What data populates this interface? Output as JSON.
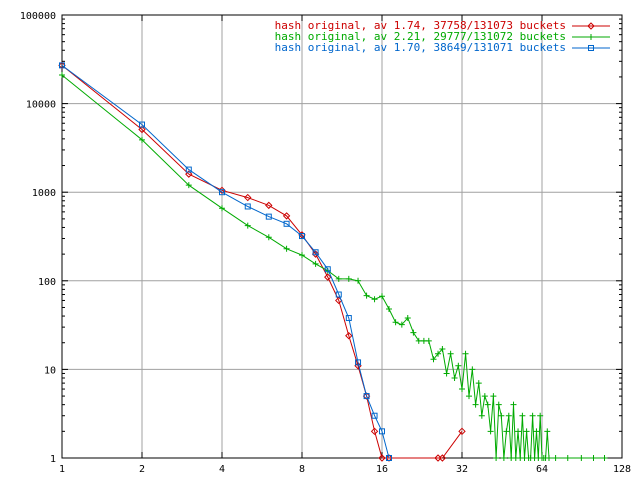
{
  "chart_data": {
    "type": "line",
    "title": "",
    "xlabel": "",
    "ylabel": "",
    "x_scale": "log2",
    "y_scale": "log10",
    "xlim": [
      1,
      128
    ],
    "ylim": [
      1,
      100000
    ],
    "grid": true,
    "legend_position": "top-right",
    "x_ticks": [
      1,
      2,
      4,
      8,
      16,
      32,
      64,
      128
    ],
    "x_tick_labels": [
      "1",
      "2",
      "4",
      "8",
      "16",
      "32",
      "64",
      "128"
    ],
    "y_ticks": [
      1,
      10,
      100,
      1000,
      10000,
      100000
    ],
    "y_tick_labels": [
      "1",
      "10",
      "100",
      "1000",
      "10000",
      "100000"
    ],
    "series": [
      {
        "name": "hash original, av 1.74, 37758/131073 buckets",
        "color": "#cc0000",
        "marker": "diamond",
        "x": [
          1,
          2,
          3,
          4,
          5,
          6,
          7,
          8,
          9,
          10,
          11,
          12,
          13,
          14,
          15,
          16,
          17,
          26,
          27,
          32
        ],
        "y": [
          27000,
          5100,
          1600,
          1050,
          870,
          710,
          540,
          330,
          200,
          110,
          60,
          24,
          11,
          5,
          2,
          1,
          1,
          1,
          1,
          2
        ]
      },
      {
        "name": "hash original, av 2.21, 29777/131072 buckets",
        "color": "#00aa00",
        "marker": "plus",
        "x": [
          1,
          2,
          3,
          4,
          5,
          6,
          7,
          8,
          9,
          10,
          11,
          12,
          13,
          14,
          15,
          16,
          17,
          18,
          19,
          20,
          21,
          22,
          23,
          24,
          25,
          26,
          27,
          28,
          29,
          30,
          31,
          32,
          33,
          34,
          35,
          36,
          37,
          38,
          39,
          40,
          41,
          42,
          43,
          44,
          45,
          46,
          47,
          48,
          49,
          50,
          51,
          52,
          53,
          54,
          55,
          56,
          57,
          58,
          59,
          60,
          61,
          62,
          63,
          64,
          65,
          66,
          67,
          68,
          72,
          80,
          90,
          100,
          110
        ],
        "y": [
          21000,
          3900,
          1200,
          660,
          420,
          310,
          230,
          195,
          155,
          130,
          105,
          105,
          100,
          68,
          62,
          67,
          48,
          34,
          32,
          38,
          26,
          21,
          21,
          21,
          13,
          15,
          17,
          9,
          15,
          8,
          11,
          6,
          15,
          5,
          10,
          4,
          7,
          3,
          5,
          4,
          2,
          5,
          1,
          4,
          3,
          1,
          2,
          3,
          1,
          4,
          1,
          2,
          1,
          3,
          1,
          2,
          1,
          1,
          3,
          1,
          2,
          1,
          3,
          1,
          1,
          1,
          2,
          1,
          1,
          1,
          1,
          1,
          1
        ]
      },
      {
        "name": "hash original, av 1.70, 38649/131071 buckets",
        "color": "#0066cc",
        "marker": "square",
        "x": [
          1,
          2,
          3,
          4,
          5,
          6,
          7,
          8,
          9,
          10,
          11,
          12,
          13,
          14,
          15,
          16,
          17
        ],
        "y": [
          27000,
          5800,
          1800,
          1000,
          690,
          530,
          440,
          320,
          210,
          135,
          70,
          38,
          12,
          5,
          3,
          2,
          1
        ]
      }
    ]
  }
}
